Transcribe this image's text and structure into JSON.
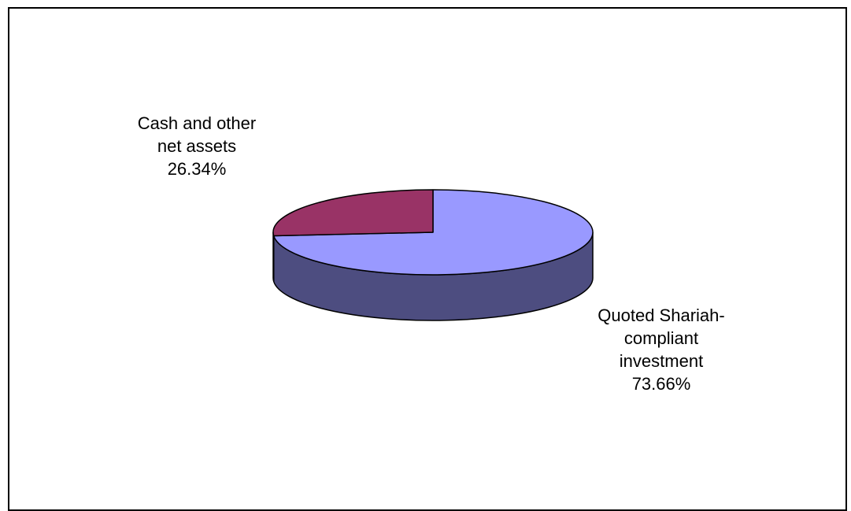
{
  "chart_data": {
    "type": "pie",
    "style": "3d",
    "title": "",
    "start_angle_deg": 0,
    "slices": [
      {
        "label_lines": [
          "Quoted Shariah-",
          "compliant",
          "investment"
        ],
        "percent_label": "73.66%",
        "value": 73.66,
        "color": "#9999ff",
        "side_color": "#4d4d80"
      },
      {
        "label_lines": [
          "Cash and other",
          "net assets"
        ],
        "percent_label": "26.34%",
        "value": 26.34,
        "color": "#993366",
        "side_color": "#4d1a33"
      }
    ],
    "legend": "none"
  }
}
